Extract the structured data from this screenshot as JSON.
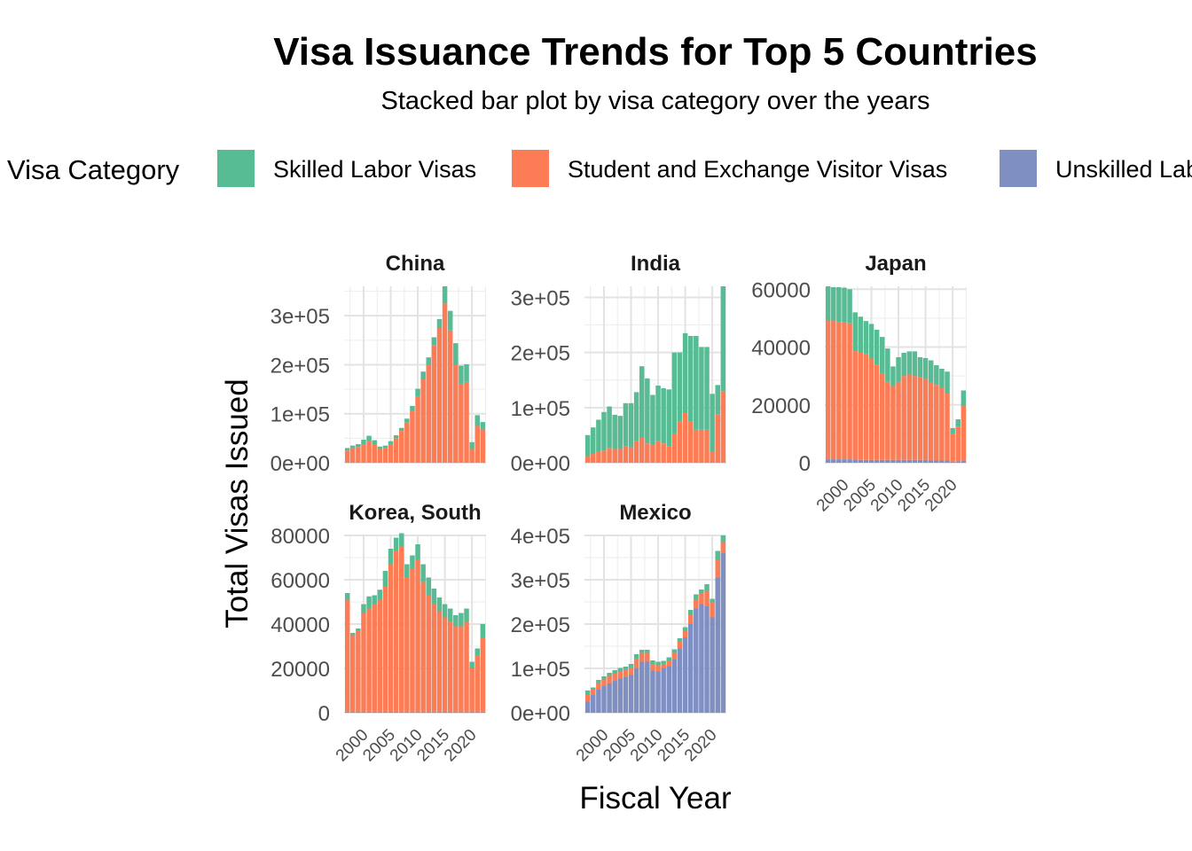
{
  "chart_data": {
    "type": "bar",
    "stacked": true,
    "title": "Visa Issuance Trends for Top 5 Countries",
    "subtitle": "Stacked bar plot by visa category over the years",
    "xlabel": "Fiscal Year",
    "ylabel": "Total Visas Issued",
    "legend": {
      "title": "Visa Category",
      "position": "top",
      "entries": [
        {
          "name": "Skilled Labor Visas",
          "color": "#57BB93"
        },
        {
          "name": "Student and Exchange Visitor Visas",
          "color": "#FC7C55"
        },
        {
          "name": "Unskilled Labor Visas",
          "color": "#7F8FC2"
        }
      ]
    },
    "x_ticks": [
      2000,
      2005,
      2010,
      2015,
      2020
    ],
    "years": [
      1997,
      1998,
      1999,
      2000,
      2001,
      2002,
      2003,
      2004,
      2005,
      2006,
      2007,
      2008,
      2009,
      2010,
      2011,
      2012,
      2013,
      2014,
      2015,
      2016,
      2017,
      2018,
      2019,
      2020,
      2021,
      2022
    ],
    "panels": [
      {
        "country": "China",
        "ylim": [
          0,
          360000
        ],
        "y_ticks": [
          0,
          100000,
          200000,
          300000
        ],
        "y_tick_labels": [
          "0e+00",
          "1e+05",
          "2e+05",
          "3e+05"
        ],
        "series": [
          {
            "name": "Unskilled Labor Visas",
            "values": [
              0,
              0,
              0,
              0,
              0,
              0,
              0,
              0,
              0,
              0,
              0,
              0,
              0,
              0,
              0,
              0,
              0,
              0,
              0,
              0,
              0,
              0,
              0,
              0,
              0,
              0
            ]
          },
          {
            "name": "Student and Exchange Visitor Visas",
            "values": [
              25000,
              30000,
              32000,
              38000,
              44000,
              38000,
              28000,
              30000,
              38000,
              50000,
              65000,
              82000,
              105000,
              135000,
              170000,
              200000,
              240000,
              275000,
              325000,
              270000,
              200000,
              160000,
              165000,
              28000,
              75000,
              68000
            ]
          },
          {
            "name": "Skilled Labor Visas",
            "values": [
              5000,
              5000,
              6000,
              9000,
              11000,
              8000,
              5000,
              5000,
              6000,
              6000,
              6000,
              8000,
              11000,
              16000,
              16000,
              15000,
              16000,
              18000,
              35000,
              40000,
              44000,
              38000,
              36000,
              14000,
              22000,
              15000
            ]
          }
        ]
      },
      {
        "country": "India",
        "ylim": [
          0,
          320000
        ],
        "y_ticks": [
          0,
          100000,
          200000,
          300000
        ],
        "y_tick_labels": [
          "0e+00",
          "1e+05",
          "2e+05",
          "3e+05"
        ],
        "series": [
          {
            "name": "Unskilled Labor Visas",
            "values": [
              0,
              0,
              0,
              0,
              0,
              0,
              0,
              0,
              0,
              0,
              0,
              0,
              0,
              0,
              0,
              0,
              0,
              0,
              0,
              0,
              0,
              0,
              0,
              0,
              0,
              0
            ]
          },
          {
            "name": "Student and Exchange Visitor Visas",
            "values": [
              12000,
              16000,
              20000,
              22000,
              27000,
              25000,
              25000,
              30000,
              28000,
              40000,
              45000,
              35000,
              33000,
              40000,
              35000,
              30000,
              52000,
              75000,
              90000,
              75000,
              60000,
              60000,
              60000,
              20000,
              88000,
              130000
            ]
          },
          {
            "name": "Skilled Labor Visas",
            "values": [
              38000,
              48000,
              58000,
              70000,
              75000,
              62000,
              60000,
              78000,
              80000,
              88000,
              130000,
              118000,
              90000,
              100000,
              100000,
              103000,
              148000,
              125000,
              145000,
              155000,
              170000,
              150000,
              150000,
              105000,
              53000,
              190000
            ]
          }
        ]
      },
      {
        "country": "Japan",
        "ylim": [
          0,
          61000
        ],
        "y_ticks": [
          0,
          20000,
          40000,
          60000
        ],
        "y_tick_labels": [
          "0",
          "20000",
          "40000",
          "60000"
        ],
        "series": [
          {
            "name": "Unskilled Labor Visas",
            "values": [
              1200,
              1200,
              1200,
              1200,
              1200,
              1100,
              1000,
              1000,
              1000,
              1000,
              1000,
              1000,
              1000,
              1000,
              1000,
              1000,
              1000,
              1000,
              1000,
              900,
              900,
              900,
              900,
              400,
              500,
              600
            ]
          },
          {
            "name": "Student and Exchange Visitor Visas",
            "values": [
              48000,
              48000,
              47500,
              47500,
              47000,
              37500,
              37000,
              36500,
              35000,
              33000,
              30000,
              27000,
              25500,
              27000,
              29000,
              29500,
              29000,
              28500,
              28000,
              27000,
              26000,
              25000,
              23000,
              9500,
              12000,
              19000
            ]
          },
          {
            "name": "Skilled Labor Visas",
            "values": [
              11800,
              11500,
              12000,
              11800,
              11800,
              13400,
              12500,
              11500,
              12000,
              12000,
              12500,
              11500,
              6800,
              8500,
              8000,
              8000,
              8500,
              7000,
              7200,
              7500,
              6800,
              6600,
              7600,
              2100,
              2500,
              5400
            ]
          }
        ]
      },
      {
        "country": "Korea, South",
        "ylim": [
          0,
          80000
        ],
        "y_ticks": [
          0,
          20000,
          40000,
          60000,
          80000
        ],
        "y_tick_labels": [
          "0",
          "20000",
          "40000",
          "60000",
          "80000"
        ],
        "series": [
          {
            "name": "Unskilled Labor Visas",
            "values": [
              500,
              500,
              500,
              500,
              500,
              500,
              500,
              500,
              500,
              500,
              500,
              500,
              500,
              500,
              500,
              500,
              500,
              500,
              500,
              500,
              500,
              500,
              500,
              500,
              500,
              500
            ]
          },
          {
            "name": "Student and Exchange Visitor Visas",
            "values": [
              50500,
              34500,
              36500,
              44500,
              46500,
              48500,
              50500,
              56500,
              66500,
              72500,
              74500,
              60500,
              64500,
              68500,
              58500,
              52500,
              48500,
              45500,
              42500,
              40500,
              38500,
              38500,
              40500,
              19500,
              25500,
              33500
            ]
          },
          {
            "name": "Skilled Labor Visas",
            "values": [
              3000,
              1000,
              1000,
              4000,
              5500,
              4000,
              4500,
              7000,
              7000,
              6000,
              6000,
              6000,
              6000,
              7000,
              8000,
              8000,
              7000,
              6000,
              6000,
              6000,
              5000,
              6000,
              6000,
              3000,
              3000,
              6000
            ]
          }
        ]
      },
      {
        "country": "Mexico",
        "ylim": [
          0,
          400000
        ],
        "y_ticks": [
          0,
          100000,
          200000,
          300000,
          400000
        ],
        "y_tick_labels": [
          "0e+00",
          "1e+05",
          "2e+05",
          "3e+05",
          "4e+05"
        ],
        "series": [
          {
            "name": "Unskilled Labor Visas",
            "values": [
              25000,
              40000,
              52000,
              60000,
              66000,
              72000,
              77000,
              80000,
              85000,
              100000,
              115000,
              115000,
              95000,
              93000,
              100000,
              105000,
              120000,
              145000,
              170000,
              200000,
              235000,
              245000,
              240000,
              215000,
              305000,
              360000
            ]
          },
          {
            "name": "Student and Exchange Visitor Visas",
            "values": [
              15000,
              12000,
              15000,
              15000,
              17000,
              17000,
              17000,
              17000,
              17000,
              22000,
              20000,
              20000,
              15000,
              14000,
              10000,
              12000,
              15000,
              15000,
              15000,
              20000,
              20000,
              25000,
              35000,
              35000,
              40000,
              25000
            ]
          },
          {
            "name": "Skilled Labor Visas",
            "values": [
              10000,
              5000,
              7000,
              7000,
              7000,
              7000,
              7000,
              7000,
              8000,
              10000,
              7000,
              7000,
              8000,
              8000,
              7000,
              8000,
              8000,
              8000,
              8000,
              12000,
              12000,
              8000,
              15000,
              7000,
              20000,
              15000
            ]
          }
        ]
      }
    ]
  }
}
